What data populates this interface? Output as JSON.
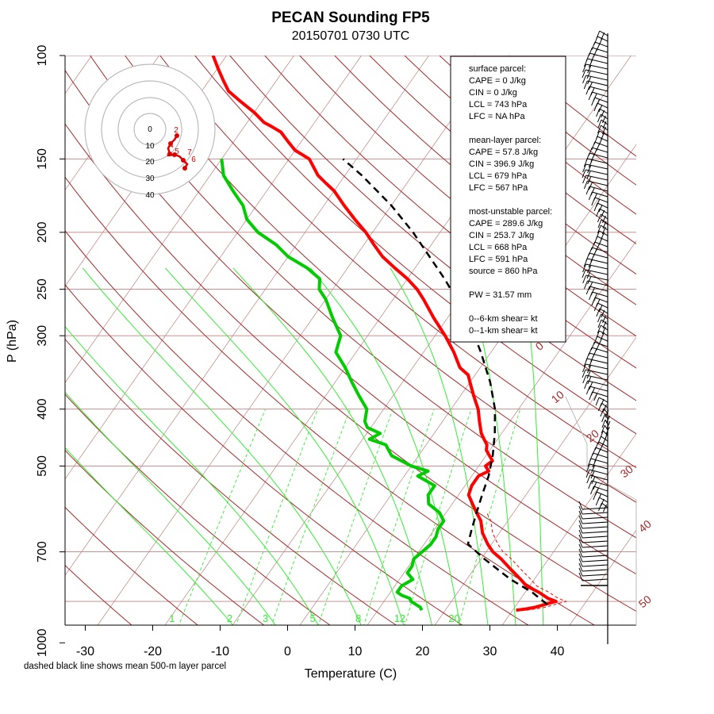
{
  "title": "PECAN Sounding FP5",
  "subtitle": "20150701 0730 UTC",
  "footnote": "dashed black line shows mean 500-m layer parcel",
  "info_box": [
    "surface parcel:",
    "CAPE = 0 J/kg",
    "CIN = 0 J/kg",
    "LCL = 743 hPa",
    "LFC = NA hPa",
    "",
    "mean-layer parcel:",
    "CAPE = 57.8 J/kg",
    "CIN = 396.9 J/kg",
    "LCL = 679 hPa",
    "LFC = 567 hPa",
    "",
    "most-unstable parcel:",
    "CAPE = 289.6 J/kg",
    "CIN = 253.7 J/kg",
    "LCL = 668 hPa",
    "LFC = 591 hPa",
    "source = 860 hPa",
    "",
    "PW =  31.57 mm",
    "",
    "0--6-km shear=  kt",
    "0--1-km shear=  kt"
  ],
  "colors": {
    "temperature": "#ff0000",
    "dewpoint": "#00cc00",
    "parcel": "#000000",
    "isobar": "#c08080",
    "dry_adiabat": "#a52a2a",
    "moist_adiabat": "#33ee33",
    "mixing_ratio": "#33ee33",
    "isotherm": "#c08080",
    "hodograph_trace": "#dd0000",
    "hodograph_rings": "#bbbbbb"
  },
  "chart_data": {
    "type": "skew-t log-p",
    "xlabel": "Temperature (C)",
    "ylabel": "P (hPa)",
    "x_ticks": [
      -30,
      -20,
      -10,
      0,
      10,
      20,
      30,
      40
    ],
    "y_ticks": [
      100,
      150,
      200,
      250,
      300,
      400,
      500,
      700,
      1000
    ],
    "xlim": [
      -33,
      46
    ],
    "ylim": [
      1050,
      100
    ],
    "mixing_ratio_labels": [
      "1",
      "2",
      "3",
      "5",
      "8",
      "12",
      "20"
    ],
    "mixing_ratio_values": [
      1,
      2,
      3,
      5,
      8,
      12,
      20
    ],
    "dry_adiabat_labels": [
      "0",
      "10",
      "20",
      "30",
      "40",
      "50"
    ],
    "temperature": {
      "p": [
        880,
        875,
        870,
        862,
        850,
        840,
        820,
        800,
        780,
        750,
        720,
        700,
        680,
        650,
        620,
        600,
        580,
        560,
        540,
        520,
        510,
        500,
        490,
        480,
        470,
        460,
        450,
        440,
        420,
        400,
        380,
        360,
        350,
        340,
        320,
        300,
        280,
        260,
        250,
        240,
        230,
        220,
        210,
        200,
        190,
        180,
        170,
        165,
        160,
        150,
        145,
        140,
        135,
        132,
        130,
        125,
        120,
        115,
        110,
        105,
        100
      ],
      "t": [
        30.5,
        32,
        33,
        34,
        35.5,
        34,
        32,
        29.5,
        28,
        25.5,
        23,
        21,
        19.5,
        17.5,
        16,
        14.5,
        13,
        11.5,
        11,
        11,
        12,
        11,
        11.5,
        10.5,
        9.5,
        9,
        8,
        7,
        5.5,
        4,
        2,
        0,
        -1,
        -3,
        -5.5,
        -8.5,
        -12,
        -15.5,
        -17.5,
        -20,
        -23,
        -26,
        -28.5,
        -31,
        -34,
        -37,
        -40,
        -42,
        -44,
        -47,
        -50,
        -52,
        -54,
        -56,
        -57.5,
        -60,
        -63,
        -66,
        -68,
        -70,
        -72
      ]
    },
    "dewpoint": {
      "p": [
        880,
        870,
        850,
        840,
        830,
        820,
        800,
        780,
        760,
        740,
        720,
        700,
        680,
        660,
        640,
        620,
        600,
        580,
        560,
        540,
        520,
        510,
        500,
        490,
        480,
        470,
        460,
        450,
        440,
        430,
        420,
        400,
        380,
        360,
        340,
        320,
        300,
        280,
        260,
        250,
        240,
        230,
        220,
        210,
        200,
        190,
        180,
        170,
        160,
        150
      ],
      "td": [
        16.5,
        16,
        14,
        13.5,
        12,
        11,
        11,
        12,
        10.5,
        10.5,
        10,
        10.5,
        11,
        11,
        10.5,
        10.5,
        9,
        6.5,
        5.5,
        5.5,
        2,
        3,
        0,
        -2,
        -4,
        -5,
        -6,
        -9,
        -8,
        -10.5,
        -11.5,
        -12.5,
        -15,
        -17.5,
        -20,
        -23,
        -24,
        -27,
        -30,
        -32,
        -33,
        -36,
        -40,
        -43,
        -47,
        -50,
        -52,
        -55,
        -58,
        -60
      ]
    },
    "parcel": {
      "p": [
        860,
        820,
        780,
        720,
        679,
        640,
        600,
        560,
        520,
        480,
        440,
        400,
        360,
        320,
        280,
        240,
        200,
        180,
        160,
        150
      ],
      "t": [
        34.5,
        31,
        26.5,
        20.5,
        16.5,
        15.5,
        14.5,
        13.5,
        12.5,
        11,
        9,
        6.5,
        3,
        -1.5,
        -7,
        -14.5,
        -24,
        -30,
        -37.5,
        -42
      ]
    },
    "hodograph": {
      "ring_labels": [
        "0",
        "10",
        "20",
        "30",
        "40"
      ],
      "point_labels": [
        "2",
        "4",
        "5",
        "7",
        "6"
      ]
    }
  }
}
